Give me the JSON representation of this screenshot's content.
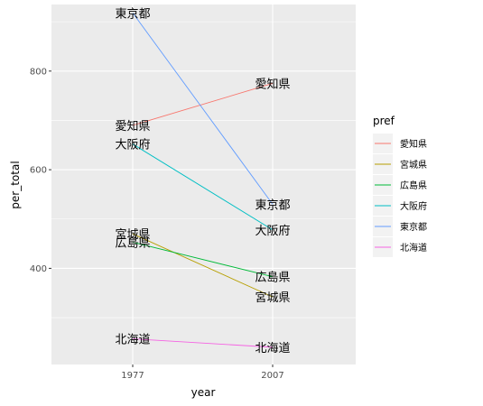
{
  "chart_data": {
    "type": "line",
    "x": [
      "1977",
      "2007"
    ],
    "xlabel": "year",
    "ylabel": "per_total",
    "ylim": [
      205,
      935
    ],
    "yticks": [
      400,
      600,
      800
    ],
    "grid": true,
    "legend": {
      "title": "pref",
      "placement": "right"
    },
    "series": [
      {
        "name": "愛知県",
        "color": "#F8766D",
        "values": [
          690,
          775
        ]
      },
      {
        "name": "宮城県",
        "color": "#B79F00",
        "values": [
          470,
          342
        ]
      },
      {
        "name": "広島県",
        "color": "#00BA38",
        "values": [
          453,
          383
        ]
      },
      {
        "name": "大阪府",
        "color": "#00BFC4",
        "values": [
          652,
          478
        ]
      },
      {
        "name": "東京都",
        "color": "#619CFF",
        "values": [
          918,
          530
        ]
      },
      {
        "name": "北海道",
        "color": "#F564E3",
        "values": [
          257,
          240
        ]
      }
    ]
  }
}
